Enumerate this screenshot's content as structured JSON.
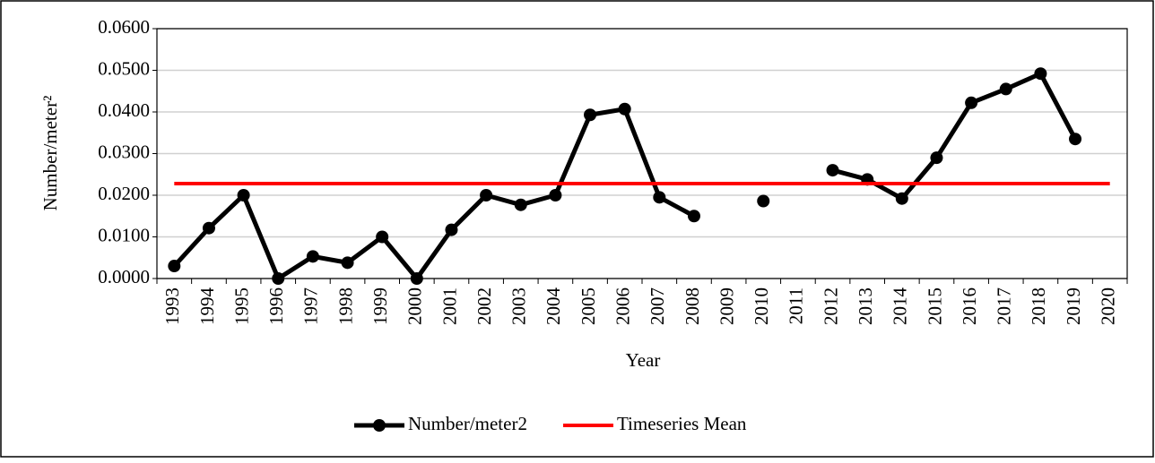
{
  "chart_data": {
    "type": "line",
    "x_label": "Year",
    "y_label": "Number/meter²",
    "categories": [
      "1993",
      "1994",
      "1995",
      "1996",
      "1997",
      "1998",
      "1999",
      "2000",
      "2001",
      "2002",
      "2003",
      "2004",
      "2005",
      "2006",
      "2007",
      "2008",
      "2009",
      "2010",
      "2011",
      "2012",
      "2013",
      "2014",
      "2015",
      "2016",
      "2017",
      "2018",
      "2019",
      "2020"
    ],
    "series": [
      {
        "name": "Number/meter2",
        "color": "#000000",
        "marker": true,
        "values": [
          0.003,
          0.0121,
          0.02,
          0.0,
          0.0053,
          0.0038,
          0.01,
          0.0,
          0.0117,
          0.02,
          0.0177,
          0.02,
          0.0393,
          0.0407,
          0.0195,
          0.015,
          null,
          0.0186,
          null,
          0.026,
          0.0238,
          0.0192,
          0.029,
          0.0422,
          0.0455,
          0.0492,
          0.0335,
          null
        ]
      },
      {
        "name": "Timeseries Mean",
        "color": "#ff0000",
        "marker": false,
        "values": [
          0.0228,
          0.0228,
          0.0228,
          0.0228,
          0.0228,
          0.0228,
          0.0228,
          0.0228,
          0.0228,
          0.0228,
          0.0228,
          0.0228,
          0.0228,
          0.0228,
          0.0228,
          0.0228,
          0.0228,
          0.0228,
          0.0228,
          0.0228,
          0.0228,
          0.0228,
          0.0228,
          0.0228,
          0.0228,
          0.0228,
          0.0228,
          0.0228
        ]
      }
    ],
    "ylim": [
      0,
      0.06
    ],
    "yticks": [
      {
        "value": 0,
        "label": "0.0000"
      },
      {
        "value": 0.01,
        "label": "0.0100"
      },
      {
        "value": 0.02,
        "label": "0.0200"
      },
      {
        "value": 0.03,
        "label": "0.0300"
      },
      {
        "value": 0.04,
        "label": "0.0400"
      },
      {
        "value": 0.05,
        "label": "0.0500"
      },
      {
        "value": 0.06,
        "label": "0.0600"
      }
    ],
    "grid": true,
    "legend": "bottom"
  }
}
